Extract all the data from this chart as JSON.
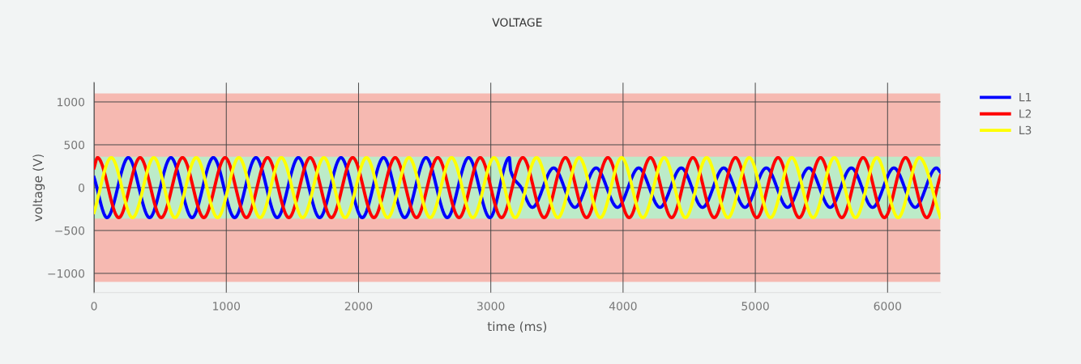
{
  "chart_data": {
    "type": "line",
    "title": "VOLTAGE",
    "xlabel": "time (ms)",
    "ylabel": "voltage (V)",
    "xlim": [
      0,
      6400
    ],
    "xticks": [
      0,
      1000,
      2000,
      3000,
      4000,
      5000,
      6000
    ],
    "ylim": [
      -1225,
      1225
    ],
    "yticks": [
      {
        "value": -1000,
        "label": "−1000"
      },
      {
        "value": -500,
        "label": "−500"
      },
      0,
      500,
      1000
    ],
    "grid": true,
    "legend": "top right",
    "marker": "none",
    "line_style": "solid",
    "bands": [
      {
        "axis": "y",
        "from": -1100,
        "to": 1100,
        "color": "#f6b9b1"
      },
      {
        "axis": "y",
        "from": -360,
        "to": 360,
        "color": "#bcebc8"
      }
    ],
    "series": [
      {
        "name": "L1",
        "color": "#0000ff",
        "x": [
          0,
          98,
          259,
          420,
          581,
          741,
          902,
          1063,
          1224,
          1385,
          1545,
          1706,
          1867,
          2028,
          2189,
          2349,
          2510,
          2671,
          2832,
          2993,
          3140,
          3150,
          3230,
          3314,
          3475,
          3636,
          3796,
          3958,
          4118,
          4279,
          4440,
          4601,
          4761,
          4922,
          5083,
          5244,
          5405,
          5566,
          5726,
          5887,
          6048,
          6209,
          6369,
          6400
        ],
        "values": [
          120,
          -350,
          350,
          -350,
          350,
          -350,
          350,
          -350,
          350,
          -350,
          350,
          -350,
          350,
          -350,
          350,
          -350,
          350,
          -350,
          350,
          -350,
          350,
          200,
          0,
          -230,
          230,
          -230,
          230,
          -230,
          230,
          -230,
          230,
          -230,
          230,
          -230,
          230,
          -230,
          230,
          -230,
          230,
          -230,
          230,
          -230,
          230,
          180
        ]
      },
      {
        "name": "L2",
        "color": "#ff0000",
        "x": [
          0,
          26,
          187,
          348,
          508,
          669,
          830,
          991,
          1152,
          1312,
          1473,
          1634,
          1795,
          1956,
          2116,
          2277,
          2438,
          2599,
          2760,
          2920,
          3081,
          3242,
          3403,
          3564,
          3724,
          3885,
          4046,
          4207,
          4367,
          4528,
          4689,
          4850,
          5011,
          5172,
          5332,
          5493,
          5654,
          5815,
          5976,
          6136,
          6297,
          6400
        ],
        "values": [
          230,
          350,
          -350,
          350,
          -350,
          350,
          -350,
          350,
          -350,
          350,
          -350,
          350,
          -350,
          350,
          -350,
          350,
          -350,
          350,
          -350,
          350,
          -350,
          350,
          -350,
          350,
          -350,
          350,
          -350,
          350,
          -350,
          350,
          -350,
          350,
          -350,
          350,
          -350,
          350,
          -350,
          350,
          -350,
          350,
          -350,
          140
        ]
      },
      {
        "name": "L3",
        "color": "#ffff00",
        "x": [
          0,
          130,
          291,
          452,
          612,
          773,
          934,
          1095,
          1256,
          1416,
          1577,
          1738,
          1899,
          2060,
          2220,
          2381,
          2542,
          2703,
          2864,
          3024,
          3185,
          3346,
          3507,
          3668,
          3828,
          3989,
          4150,
          4311,
          4472,
          4632,
          4793,
          4954,
          5115,
          5276,
          5437,
          5597,
          5758,
          5919,
          6080,
          6240,
          6400
        ],
        "values": [
          -290,
          350,
          -350,
          350,
          -350,
          350,
          -350,
          350,
          -350,
          350,
          -350,
          350,
          -350,
          350,
          -350,
          350,
          -350,
          350,
          -350,
          350,
          -350,
          350,
          -350,
          350,
          -350,
          350,
          -350,
          350,
          -350,
          350,
          -350,
          350,
          -350,
          350,
          -350,
          350,
          -350,
          350,
          -350,
          350,
          -350
        ]
      }
    ]
  }
}
